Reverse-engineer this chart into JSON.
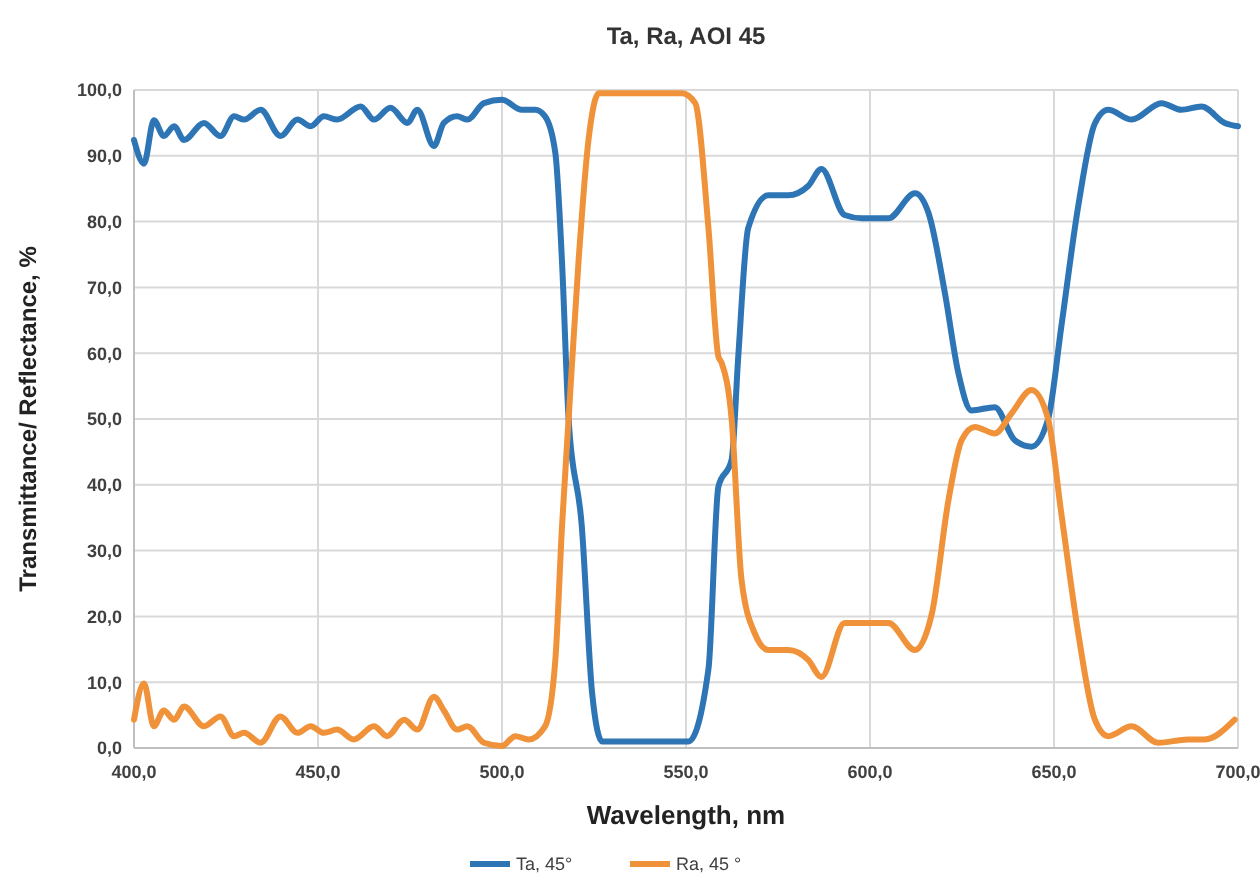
{
  "chart_data": {
    "type": "line",
    "title": "Ta, Ra, AOI 45",
    "xlabel": "Wavelength, nm",
    "ylabel": "Transmittance/ Reflectance, %",
    "xlim": [
      400,
      700
    ],
    "ylim": [
      0,
      100
    ],
    "xticks": [
      {
        "value": 400,
        "label": "400,0"
      },
      {
        "value": 450,
        "label": "450,0"
      },
      {
        "value": 500,
        "label": "500,0"
      },
      {
        "value": 550,
        "label": "550,0"
      },
      {
        "value": 600,
        "label": "600,0"
      },
      {
        "value": 650,
        "label": "650,0"
      },
      {
        "value": 700,
        "label": "700,0"
      }
    ],
    "yticks": [
      {
        "value": 0,
        "label": "0,0"
      },
      {
        "value": 10,
        "label": "10,0"
      },
      {
        "value": 20,
        "label": "20,0"
      },
      {
        "value": 30,
        "label": "30,0"
      },
      {
        "value": 40,
        "label": "40,0"
      },
      {
        "value": 50,
        "label": "50,0"
      },
      {
        "value": 60,
        "label": "60,0"
      },
      {
        "value": 70,
        "label": "70,0"
      },
      {
        "value": 80,
        "label": "80,0"
      },
      {
        "value": 90,
        "label": "90,0"
      },
      {
        "value": 100,
        "label": "100,0"
      }
    ],
    "grid": true,
    "legend": "bottom",
    "marker": "none",
    "line_style": "solid",
    "series": [
      {
        "name": "Ta, 45°",
        "color": "#2e75b6",
        "x": [
          400,
          402.7,
          405.4,
          408.1,
          410.9,
          413.6,
          419,
          423.5,
          427.2,
          429.9,
          434.4,
          439.8,
          444.4,
          448,
          451.6,
          455.2,
          461.6,
          465.2,
          469.7,
          474.3,
          477,
          481.5,
          484.2,
          487.8,
          490.6,
          495.1,
          500,
          505.4,
          509,
          511.7,
          514.5,
          516.3,
          518.1,
          521.7,
          524.5,
          527.2,
          550.7,
          556.1,
          558.8,
          562.4,
          564.2,
          566.9,
          572.4,
          577.8,
          583.2,
          586.8,
          593.1,
          597.8,
          605,
          612.2,
          615.9,
          620.4,
          624,
          627.6,
          633.9,
          639.3,
          643.9,
          648.4,
          652,
          656.6,
          661.1,
          664.7,
          671.1,
          679.2,
          684.6,
          690.1,
          696.4,
          700
        ],
        "values": [
          92.4,
          88.8,
          95.4,
          93,
          94.5,
          92.4,
          95,
          93,
          96,
          95.5,
          97,
          93,
          95.5,
          94.5,
          96,
          95.5,
          97.5,
          95.5,
          97.3,
          95,
          97,
          91.5,
          95,
          96,
          95.5,
          98,
          98.5,
          97,
          97,
          96,
          90.4,
          74,
          50,
          33.6,
          8.3,
          1,
          1,
          12,
          39.7,
          43.8,
          59.5,
          79,
          84,
          84,
          85.4,
          88,
          81,
          80.5,
          80.5,
          84.3,
          81.3,
          69,
          57,
          51.3,
          51.8,
          46.8,
          45.8,
          50,
          64.1,
          82.4,
          94.9,
          97,
          95.5,
          98,
          97,
          97.5,
          95,
          94.5
        ]
      },
      {
        "name": "Ra, 45 °",
        "color": "#f0923a",
        "x": [
          400,
          402.7,
          405.4,
          408.1,
          410.9,
          413.6,
          419,
          423.5,
          427.2,
          429.9,
          434.4,
          439.8,
          444.4,
          448,
          451.6,
          455.2,
          459.7,
          465.2,
          468.8,
          473.4,
          477,
          481.5,
          484.2,
          487.8,
          490.6,
          495.1,
          500,
          503.6,
          507.2,
          511.7,
          514.5,
          516.3,
          518.1,
          520.8,
          523.5,
          526.3,
          548.9,
          552.5,
          556.1,
          558.8,
          559.7,
          562.4,
          565.1,
          568.7,
          572.4,
          577.8,
          583.2,
          586.8,
          593.1,
          597.8,
          605,
          612.2,
          616.8,
          621.3,
          624.9,
          628.5,
          633.9,
          638.4,
          643.9,
          648.4,
          652,
          656.6,
          661.1,
          664.7,
          671.1,
          678.3,
          686.4,
          690.9,
          699.1
        ],
        "values": [
          4.3,
          9.8,
          3.3,
          5.7,
          4.3,
          6.3,
          3.3,
          4.8,
          1.8,
          2.3,
          0.8,
          4.8,
          2.3,
          3.3,
          2.3,
          2.8,
          1.3,
          3.3,
          1.8,
          4.3,
          2.8,
          7.8,
          5.7,
          2.8,
          3.3,
          0.8,
          0.3,
          1.8,
          1.3,
          3.3,
          13.4,
          33.6,
          50,
          74,
          92.4,
          99.5,
          99.5,
          98,
          79,
          59.5,
          58.5,
          50,
          25.5,
          17.4,
          14.9,
          14.9,
          13.4,
          10.8,
          19,
          19,
          19,
          14.9,
          20.4,
          37.6,
          46.8,
          48.8,
          47.8,
          50.8,
          54.4,
          50,
          35.6,
          17.4,
          4.3,
          1.8,
          3.3,
          0.8,
          1.3,
          1.3,
          4.3
        ]
      }
    ]
  }
}
